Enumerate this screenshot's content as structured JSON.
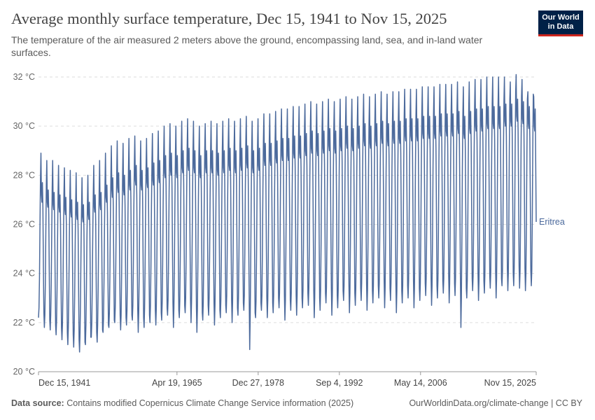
{
  "header": {
    "title": "Average monthly surface temperature, Dec 15, 1941 to Nov 15, 2025",
    "subtitle": "The temperature of the air measured 2 meters above the ground, encompassing land, sea, and in-land water surfaces.",
    "logo_line1": "Our World",
    "logo_line2": "in Data"
  },
  "footer": {
    "source_label": "Data source:",
    "source_text": "Contains modified Copernicus Climate Change Service information (2025)",
    "attribution": "OurWorldinData.org/climate-change | CC BY"
  },
  "colors": {
    "series": "#4c6a9c",
    "grid": "#dddddd",
    "axis": "#999999",
    "logo_bg": "#002147",
    "logo_accent": "#ce261e"
  },
  "chart_data": {
    "type": "line",
    "title": "Average monthly surface temperature, Dec 15, 1941 to Nov 15, 2025",
    "xlabel": "",
    "ylabel": "",
    "ylim": [
      20,
      32
    ],
    "xlim": [
      1941.95,
      2025.87
    ],
    "y_ticks": [
      20,
      22,
      24,
      26,
      28,
      30,
      32
    ],
    "y_tick_labels": [
      "20 °C",
      "22 °C",
      "24 °C",
      "26 °C",
      "28 °C",
      "30 °C",
      "32 °C"
    ],
    "x_ticks": [
      1941.95,
      1965.3,
      1978.99,
      1992.68,
      2006.37,
      2025.87
    ],
    "x_tick_labels": [
      "Dec 15, 1941",
      "Apr 19, 1965",
      "Dec 27, 1978",
      "Sep 4, 1992",
      "May 14, 2006",
      "Nov 15, 2025"
    ],
    "grid": true,
    "legend": "right end of line",
    "series": [
      {
        "name": "Eritrea",
        "label": "Eritrea",
        "start_year": 1941.95,
        "step": "monthly",
        "annual_cycle": {
          "description": "Approximate reconstruction: each year has a spring peak (May-Jun), a dip in Jul-Aug, a secondary peak in Sep-Oct and a winter minimum (Dec-Jan).",
          "annual_min_start": 21.5,
          "annual_min_end": 23.2,
          "annual_max_start": 28.4,
          "annual_max_end": 31.4
        },
        "values": [
          22.2,
          22.6,
          23.8,
          25.9,
          27.8,
          28.9,
          27.2,
          26.9,
          27.7,
          26.7,
          24.3,
          22.4,
          21.8,
          22.3,
          23.6,
          25.7,
          27.6,
          28.6,
          26.9,
          26.7,
          27.4,
          26.4,
          24.1,
          22.1,
          21.7,
          22.3,
          23.5,
          25.5,
          27.5,
          28.6,
          26.8,
          26.6,
          27.3,
          26.2,
          23.9,
          21.9,
          21.5,
          22.1,
          23.4,
          25.4,
          27.3,
          28.4,
          26.7,
          26.5,
          27.2,
          26.1,
          23.8,
          21.8,
          21.3,
          21.9,
          23.3,
          25.3,
          27.2,
          28.3,
          26.6,
          26.4,
          27.1,
          26.0,
          23.6,
          21.6,
          21.1,
          21.8,
          23.2,
          25.2,
          27.0,
          28.2,
          26.5,
          26.3,
          27.0,
          25.9,
          23.5,
          21.5,
          21.0,
          21.7,
          23.1,
          25.1,
          26.8,
          28.1,
          26.4,
          26.2,
          26.9,
          25.8,
          23.4,
          21.3,
          20.8,
          21.6,
          23.0,
          25.0,
          26.6,
          27.9,
          26.3,
          26.1,
          26.8,
          25.7,
          23.3,
          21.2,
          21.1,
          21.9,
          23.3,
          25.3,
          26.8,
          28.0,
          26.4,
          26.2,
          26.9,
          25.9,
          23.5,
          21.4,
          21.4,
          22.0,
          23.5,
          25.6,
          27.2,
          28.4,
          26.7,
          26.5,
          27.2,
          26.1,
          23.7,
          21.6,
          21.2,
          21.9,
          23.4,
          25.6,
          27.3,
          28.6,
          26.8,
          26.6,
          27.3,
          26.2,
          23.8,
          21.7,
          21.6,
          22.2,
          23.7,
          25.9,
          27.6,
          28.9,
          27.1,
          26.9,
          27.6,
          26.5,
          24.0,
          21.9,
          21.8,
          22.4,
          23.9,
          26.1,
          27.9,
          29.2,
          27.4,
          27.1,
          27.9,
          26.7,
          24.2,
          22.1,
          22.0,
          22.6,
          24.1,
          26.3,
          28.1,
          29.4,
          27.5,
          27.3,
          28.1,
          26.9,
          24.4,
          22.3,
          21.7,
          22.3,
          23.9,
          26.2,
          28.0,
          29.3,
          27.4,
          27.2,
          28.0,
          26.8,
          24.3,
          22.2,
          21.9,
          22.5,
          24.1,
          26.4,
          28.2,
          29.5,
          27.6,
          27.4,
          28.2,
          27.0,
          24.4,
          22.3,
          22.1,
          22.7,
          24.3,
          26.6,
          28.4,
          29.6,
          27.8,
          27.6,
          28.4,
          27.2,
          24.6,
          22.5,
          21.6,
          22.4,
          24.0,
          26.3,
          28.2,
          29.4,
          27.6,
          27.4,
          28.2,
          27.0,
          24.4,
          22.2,
          21.8,
          22.6,
          24.2,
          26.5,
          28.3,
          29.5,
          27.7,
          27.5,
          28.3,
          27.1,
          24.5,
          22.3,
          22.0,
          22.7,
          24.3,
          26.7,
          28.5,
          29.7,
          27.8,
          27.6,
          28.5,
          27.3,
          24.7,
          22.5,
          21.9,
          22.6,
          24.3,
          26.7,
          28.6,
          29.8,
          27.9,
          27.7,
          28.6,
          27.3,
          24.7,
          22.4,
          22.1,
          22.8,
          24.4,
          26.9,
          28.8,
          30.0,
          28.1,
          27.9,
          28.8,
          27.5,
          24.9,
          22.6,
          22.3,
          22.9,
          24.5,
          27.0,
          28.9,
          30.1,
          28.2,
          28.0,
          28.9,
          27.6,
          25.0,
          22.8,
          21.8,
          22.6,
          24.3,
          26.8,
          28.8,
          30.0,
          28.1,
          27.9,
          28.8,
          27.5,
          24.8,
          22.5,
          22.2,
          22.9,
          24.6,
          27.0,
          29.0,
          30.2,
          28.3,
          28.1,
          29.0,
          27.7,
          25.0,
          22.7,
          22.4,
          23.0,
          24.7,
          27.1,
          29.1,
          30.3,
          28.4,
          28.2,
          29.1,
          27.8,
          25.1,
          22.9,
          22.0,
          22.8,
          24.5,
          26.9,
          29.0,
          30.2,
          28.3,
          28.1,
          29.0,
          27.7,
          25.0,
          22.6,
          21.6,
          22.5,
          24.3,
          26.8,
          28.8,
          30.0,
          28.1,
          27.9,
          28.8,
          27.5,
          24.8,
          22.4,
          22.1,
          22.8,
          24.6,
          27.0,
          29.0,
          30.1,
          28.3,
          28.1,
          29.0,
          27.7,
          25.0,
          22.7,
          22.3,
          23.0,
          24.7,
          27.1,
          29.0,
          30.2,
          28.3,
          28.1,
          29.0,
          27.8,
          25.1,
          22.8,
          21.9,
          22.7,
          24.5,
          27.0,
          29.0,
          30.1,
          28.2,
          28.0,
          28.9,
          27.6,
          24.9,
          22.5,
          22.2,
          22.9,
          24.6,
          27.1,
          29.1,
          30.2,
          28.3,
          28.1,
          29.0,
          27.7,
          25.0,
          22.7,
          22.4,
          23.1,
          24.8,
          27.2,
          29.2,
          30.3,
          28.4,
          28.2,
          29.1,
          27.8,
          25.2,
          22.9,
          22.0,
          22.8,
          24.6,
          27.1,
          29.1,
          30.2,
          28.3,
          28.1,
          29.0,
          27.7,
          25.0,
          22.6,
          22.3,
          23.0,
          24.7,
          27.2,
          29.2,
          30.3,
          28.4,
          28.2,
          29.1,
          27.8,
          25.1,
          22.8,
          22.5,
          23.1,
          24.8,
          27.3,
          29.3,
          30.4,
          28.5,
          28.3,
          29.2,
          27.9,
          25.2,
          23.0,
          20.9,
          22.2,
          24.2,
          26.9,
          29.0,
          30.2,
          28.3,
          28.1,
          29.0,
          27.7,
          25.0,
          22.4,
          22.2,
          22.9,
          24.7,
          27.2,
          29.2,
          30.3,
          28.4,
          28.2,
          29.1,
          27.8,
          25.1,
          22.8,
          22.5,
          23.1,
          24.9,
          27.4,
          29.4,
          30.5,
          28.6,
          28.4,
          29.3,
          28.0,
          25.3,
          23.0,
          22.2,
          22.9,
          24.7,
          27.3,
          29.4,
          30.5,
          28.6,
          28.4,
          29.3,
          28.0,
          25.3,
          22.8,
          22.4,
          23.1,
          24.9,
          27.5,
          29.5,
          30.6,
          28.7,
          28.5,
          29.4,
          28.1,
          25.4,
          23.0,
          22.6,
          23.2,
          25.0,
          27.6,
          29.6,
          30.7,
          28.8,
          28.6,
          29.5,
          28.2,
          25.5,
          23.1,
          22.1,
          22.9,
          24.8,
          27.5,
          29.6,
          30.7,
          28.8,
          28.6,
          29.5,
          28.2,
          25.5,
          22.9,
          22.5,
          23.2,
          25.0,
          27.6,
          29.7,
          30.8,
          28.9,
          28.7,
          29.6,
          28.3,
          25.6,
          23.1,
          22.3,
          23.1,
          25.0,
          27.6,
          29.7,
          30.8,
          28.9,
          28.7,
          29.6,
          28.3,
          25.6,
          23.0,
          22.6,
          23.3,
          25.1,
          27.8,
          29.8,
          30.9,
          29.0,
          28.8,
          29.7,
          28.4,
          25.7,
          23.2,
          22.7,
          23.4,
          25.2,
          27.9,
          29.9,
          31.0,
          29.1,
          28.9,
          29.8,
          28.5,
          25.8,
          23.3,
          22.2,
          23.0,
          25.0,
          27.7,
          29.8,
          30.9,
          29.0,
          28.8,
          29.7,
          28.4,
          25.7,
          23.0,
          22.5,
          23.3,
          25.2,
          27.9,
          29.9,
          31.0,
          29.1,
          28.9,
          29.8,
          28.5,
          25.8,
          23.2,
          22.8,
          23.4,
          25.3,
          28.0,
          30.0,
          31.1,
          29.2,
          29.0,
          29.9,
          28.6,
          25.9,
          23.4,
          22.3,
          23.1,
          25.1,
          27.9,
          29.9,
          31.0,
          29.1,
          28.9,
          29.8,
          28.5,
          25.8,
          23.1,
          22.6,
          23.3,
          25.2,
          28.0,
          30.0,
          31.1,
          29.2,
          29.0,
          29.9,
          28.6,
          25.9,
          23.3,
          22.9,
          23.5,
          25.4,
          28.1,
          30.1,
          31.2,
          29.3,
          29.1,
          30.0,
          28.7,
          26.0,
          23.5,
          22.4,
          23.2,
          25.2,
          28.0,
          30.0,
          31.1,
          29.2,
          29.0,
          29.9,
          28.6,
          25.9,
          23.2,
          22.7,
          23.4,
          25.3,
          28.1,
          30.1,
          31.2,
          29.3,
          29.1,
          30.0,
          28.7,
          26.0,
          23.4,
          22.9,
          23.6,
          25.5,
          28.2,
          30.2,
          31.3,
          29.4,
          29.2,
          30.1,
          28.8,
          26.1,
          23.6,
          22.5,
          23.3,
          25.3,
          28.1,
          30.1,
          31.2,
          29.3,
          29.1,
          30.0,
          28.7,
          26.0,
          23.3,
          22.8,
          23.5,
          25.4,
          28.2,
          30.2,
          31.3,
          29.4,
          29.2,
          30.1,
          28.8,
          26.1,
          23.5,
          23.0,
          23.6,
          25.5,
          28.3,
          30.3,
          31.4,
          29.5,
          29.3,
          30.2,
          28.9,
          26.2,
          23.7,
          22.6,
          23.4,
          25.4,
          28.2,
          30.2,
          31.3,
          29.4,
          29.2,
          30.1,
          28.8,
          26.1,
          23.4,
          22.9,
          23.6,
          25.5,
          28.3,
          30.3,
          31.4,
          29.5,
          29.3,
          30.2,
          28.9,
          26.2,
          23.6,
          22.4,
          23.3,
          25.3,
          28.2,
          30.3,
          31.4,
          29.5,
          29.3,
          30.2,
          28.9,
          26.2,
          23.3,
          22.8,
          23.5,
          25.5,
          28.3,
          30.4,
          31.5,
          29.6,
          29.4,
          30.3,
          29.0,
          26.3,
          23.5,
          23.0,
          23.7,
          25.6,
          28.4,
          30.4,
          31.5,
          29.6,
          29.4,
          30.3,
          29.0,
          26.3,
          23.7,
          22.6,
          23.4,
          25.4,
          28.3,
          30.4,
          31.5,
          29.6,
          29.4,
          30.3,
          29.0,
          26.3,
          23.4,
          22.9,
          23.6,
          25.6,
          28.4,
          30.5,
          31.6,
          29.7,
          29.5,
          30.4,
          29.1,
          26.4,
          23.6,
          23.1,
          23.8,
          25.7,
          28.5,
          30.5,
          31.6,
          29.7,
          29.5,
          30.4,
          29.1,
          26.4,
          23.8,
          22.7,
          23.5,
          25.5,
          28.4,
          30.5,
          31.6,
          29.7,
          29.5,
          30.4,
          29.1,
          26.4,
          23.5,
          23.0,
          23.7,
          25.7,
          28.5,
          30.6,
          31.7,
          29.8,
          29.6,
          30.5,
          29.2,
          26.5,
          23.7,
          23.2,
          23.8,
          25.8,
          28.6,
          30.6,
          31.7,
          29.8,
          29.6,
          30.5,
          29.2,
          26.5,
          23.9,
          22.8,
          23.6,
          25.6,
          28.5,
          30.6,
          31.7,
          29.8,
          29.6,
          30.5,
          29.2,
          26.5,
          23.6,
          23.1,
          23.8,
          25.8,
          28.6,
          30.7,
          31.8,
          29.9,
          29.7,
          30.6,
          29.3,
          26.6,
          23.8,
          21.8,
          23.0,
          25.3,
          28.3,
          30.5,
          31.6,
          29.7,
          29.5,
          30.4,
          29.1,
          26.4,
          23.4,
          23.0,
          23.7,
          25.7,
          28.6,
          30.7,
          31.8,
          29.9,
          29.7,
          30.6,
          29.3,
          26.6,
          23.8,
          23.3,
          23.9,
          25.9,
          28.8,
          30.8,
          31.9,
          30.0,
          29.8,
          30.7,
          29.4,
          26.7,
          24.0,
          22.9,
          23.7,
          25.7,
          28.7,
          30.8,
          31.9,
          30.0,
          29.8,
          30.7,
          29.4,
          26.7,
          23.7,
          23.2,
          23.9,
          25.9,
          28.8,
          30.9,
          32.0,
          30.1,
          29.9,
          30.8,
          29.5,
          26.8,
          23.9,
          23.4,
          24.0,
          26.0,
          28.9,
          30.9,
          32.0,
          30.1,
          29.9,
          30.8,
          29.5,
          26.8,
          24.1,
          23.0,
          23.8,
          25.8,
          28.8,
          30.9,
          32.0,
          30.1,
          29.9,
          30.8,
          29.5,
          26.8,
          23.8,
          23.5,
          24.1,
          26.1,
          29.0,
          31.0,
          32.0,
          30.2,
          30.0,
          30.9,
          29.6,
          26.9,
          24.2,
          23.3,
          24.0,
          26.0,
          29.0,
          31.1,
          31.8,
          30.2,
          30.0,
          30.9,
          29.6,
          26.9,
          24.0,
          23.5,
          24.2,
          26.2,
          29.2,
          31.4,
          32.1,
          30.4,
          30.2,
          31.1,
          29.8,
          27.1,
          24.3,
          23.4,
          24.1,
          26.1,
          29.0,
          31.2,
          31.9,
          30.3,
          30.1,
          31.0,
          29.7,
          27.0,
          24.2,
          23.3,
          24.0,
          26.0,
          28.9,
          31.1,
          31.4,
          30.1,
          29.9,
          30.8,
          29.5,
          26.9,
          24.1,
          23.5,
          24.1,
          26.2,
          29.0,
          31.3,
          31.2,
          30.0,
          29.8,
          30.7,
          28.5,
          26.1
        ]
      }
    ]
  }
}
